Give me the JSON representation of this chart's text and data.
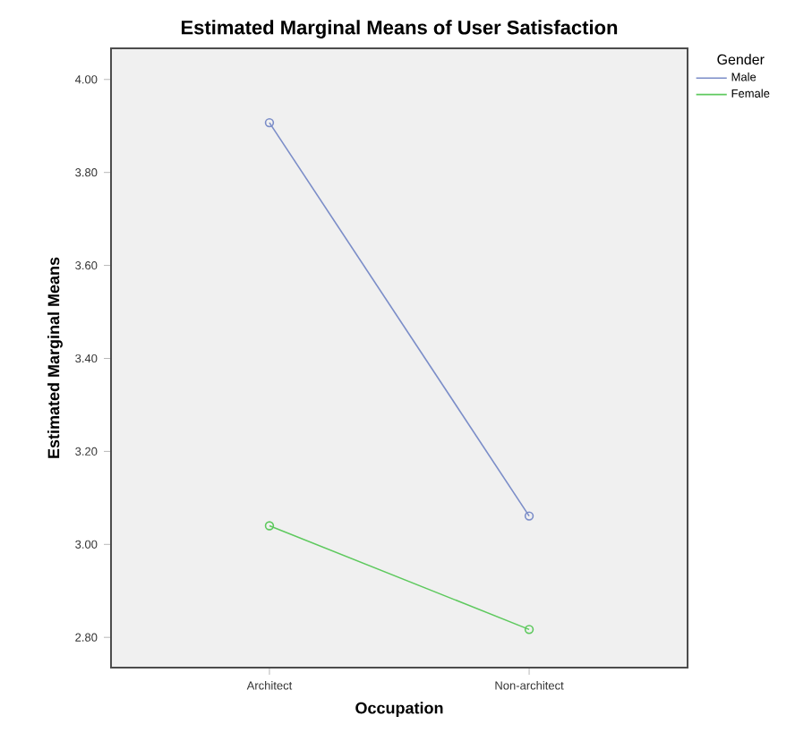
{
  "chart_data": {
    "type": "line",
    "title": "Estimated Marginal Means of User Satisfaction",
    "xlabel": "Occupation",
    "ylabel": "Estimated Marginal Means",
    "legend_title": "Gender",
    "categories": [
      "Architect",
      "Non-architect"
    ],
    "series": [
      {
        "name": "Male",
        "color": "#7b8dc8",
        "values": [
          3.907,
          3.061
        ]
      },
      {
        "name": "Female",
        "color": "#5ec95e",
        "values": [
          3.04,
          2.817
        ]
      }
    ],
    "ylim": [
      2.735,
      4.067
    ],
    "yticks": [
      {
        "value": 2.8,
        "label": "2.80"
      },
      {
        "value": 3.0,
        "label": "3.00"
      },
      {
        "value": 3.2,
        "label": "3.20"
      },
      {
        "value": 3.4,
        "label": "3.40"
      },
      {
        "value": 3.6,
        "label": "3.60"
      },
      {
        "value": 3.8,
        "label": "3.80"
      },
      {
        "value": 4.0,
        "label": "4.00"
      }
    ],
    "marker": "circle",
    "line_style": "solid",
    "legend": "top right",
    "grid": false
  }
}
